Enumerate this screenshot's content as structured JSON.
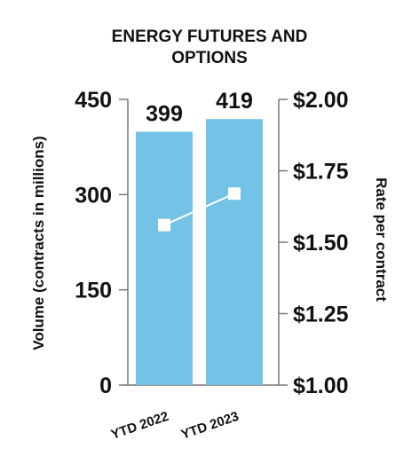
{
  "title": {
    "line1": "ENERGY FUTURES AND",
    "line2": "OPTIONS"
  },
  "chart_data": {
    "type": "bar",
    "categories": [
      "YTD 2022",
      "YTD 2023"
    ],
    "series": [
      {
        "values": [
          399,
          419
        ],
        "data_labels": [
          "399",
          "419"
        ],
        "axis": "left",
        "color": "#73c3e6"
      },
      {
        "type": "line",
        "values": [
          1.56,
          1.67
        ],
        "axis": "right",
        "color": "#ffffff"
      }
    ],
    "left_axis": {
      "label": "Volume (contracts in millions)",
      "ticks": [
        0,
        150,
        300,
        450
      ],
      "tick_labels": [
        "0",
        "150",
        "300",
        "450"
      ],
      "ylim": [
        0,
        450
      ]
    },
    "right_axis": {
      "label": "Rate per contract",
      "ticks": [
        1.0,
        1.25,
        1.5,
        1.75,
        2.0
      ],
      "tick_labels": [
        "$1.00",
        "$1.25",
        "$1.50",
        "$1.75",
        "$2.00"
      ],
      "ylim": [
        1.0,
        2.0
      ]
    },
    "grid": false,
    "legend": "none"
  }
}
